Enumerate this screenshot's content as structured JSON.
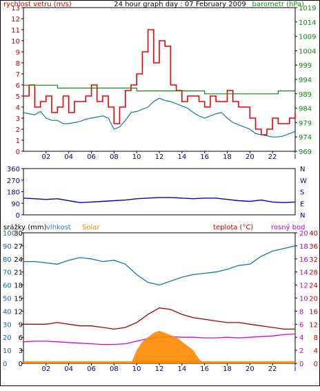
{
  "page": {
    "background": "#ffffff",
    "border": "#000000"
  },
  "colors": {
    "red": "#ee0000",
    "green": "#118811",
    "cyan": "#1177aa",
    "blue": "#0000cc",
    "orange": "#ff8800",
    "magenta": "#dd00dd",
    "darkred": "#aa0000",
    "text_red": "#cc0000",
    "text_green": "#118811",
    "text_blue": "#3377cc",
    "text_axis_blue": "#1166bb",
    "text_dark_blue": "#000088",
    "text_orange": "#ff8800",
    "text_magenta": "#cc00cc",
    "text_black": "#000000"
  },
  "chart_data": [
    {
      "type": "line",
      "title": "24 hour graph day : 07 February 2009",
      "left_axis_label": "rychlost vetru (m/s)",
      "right_axis_label": "barometr (hPa)",
      "x_ticks": [
        "02",
        "04",
        "06",
        "08",
        "10",
        "12",
        "14",
        "16",
        "18",
        "20",
        "22",
        "I"
      ],
      "left_ylim": [
        0,
        13
      ],
      "left_ticks": [
        "0",
        "1",
        "2",
        "3",
        "4",
        "5",
        "6",
        "7",
        "8",
        "9",
        "10",
        "11",
        "12",
        "13"
      ],
      "right_ylim": [
        969,
        1019
      ],
      "right_ticks": [
        "969",
        "974",
        "979",
        "984",
        "989",
        "994",
        "999",
        "1004",
        "1009",
        "1014",
        "1019"
      ],
      "grid": false,
      "series": [
        {
          "name": "",
          "color": "#ee0000",
          "style": "step",
          "x": [
            0,
            0.5,
            1,
            1.5,
            2,
            2.5,
            3,
            3.5,
            4,
            4.5,
            5,
            5.5,
            6,
            6.5,
            7,
            7.5,
            8,
            8.5,
            9,
            9.5,
            10,
            10.5,
            11,
            11.5,
            12,
            12.5,
            13,
            13.5,
            14,
            14.5,
            15,
            15.5,
            16,
            16.5,
            17,
            17.5,
            18,
            18.5,
            19,
            19.5,
            20,
            20.5,
            21,
            21.5,
            22,
            22.5,
            23,
            23.5,
            24
          ],
          "y": [
            5,
            6,
            4,
            4.5,
            5,
            3.5,
            4,
            5,
            3.5,
            4.5,
            4.5,
            5,
            6,
            4.5,
            5,
            4,
            2.5,
            4,
            5.5,
            6,
            7,
            9,
            11,
            8,
            10,
            9.5,
            6,
            5.5,
            4.5,
            5,
            5,
            4.5,
            4,
            5,
            4.5,
            4.5,
            5.5,
            4.5,
            4,
            4,
            3,
            2,
            1.5,
            2,
            3,
            2.5,
            2.5,
            3,
            3.5
          ]
        },
        {
          "name": "",
          "color": "#1177aa",
          "style": "line",
          "x": [
            0,
            0.5,
            1,
            1.5,
            2,
            2.5,
            3,
            3.5,
            4,
            4.5,
            5,
            5.5,
            6,
            6.5,
            7,
            7.5,
            8,
            8.5,
            9,
            9.5,
            10,
            10.5,
            11,
            11.5,
            12,
            12.5,
            13,
            13.5,
            14,
            14.5,
            15,
            15.5,
            16,
            16.5,
            17,
            17.5,
            18,
            18.5,
            19,
            19.5,
            20,
            20.5,
            21,
            21.5,
            22,
            22.5,
            23,
            23.5,
            24
          ],
          "y": [
            3.5,
            3.4,
            3.3,
            3.6,
            3,
            2.8,
            2.8,
            2.5,
            2.5,
            2.6,
            2.7,
            2.9,
            3,
            3.1,
            3.2,
            3.0,
            2.0,
            2.2,
            2.8,
            3.5,
            3.6,
            3.8,
            4.0,
            4.5,
            4.8,
            4.6,
            4.5,
            4.3,
            4.1,
            3.9,
            3.5,
            3.2,
            3.0,
            3.2,
            3.4,
            3.5,
            3.0,
            2.6,
            2.4,
            2.2,
            2.0,
            1.6,
            1.5,
            1.4,
            1.3,
            1.3,
            1.4,
            1.6,
            1.8
          ]
        },
        {
          "name": "",
          "color": "#118811",
          "style": "step",
          "axis": "right",
          "x": [
            0,
            1,
            2,
            3,
            4,
            5,
            6,
            7,
            8,
            9,
            10,
            11,
            12,
            13,
            14,
            15,
            16,
            17,
            18,
            19,
            20,
            21,
            22,
            22.5,
            23,
            24
          ],
          "y": [
            992,
            992,
            992,
            991,
            991,
            991,
            991,
            991,
            991,
            991,
            990,
            990,
            990,
            990,
            990,
            990,
            989,
            989,
            989,
            989,
            989,
            989,
            989,
            990,
            990,
            990
          ]
        }
      ]
    },
    {
      "type": "line",
      "left_ticks": [
        "0",
        "90",
        "180",
        "270",
        "360"
      ],
      "right_ticks": [
        "N",
        "W",
        "S",
        "E",
        "N"
      ],
      "ylim": [
        0,
        360
      ],
      "series": [
        {
          "name": "",
          "color": "#0000cc",
          "x": [
            0,
            1,
            2,
            3,
            4,
            5,
            6,
            7,
            8,
            9,
            10,
            11,
            12,
            13,
            14,
            15,
            16,
            17,
            18,
            19,
            20,
            21,
            22,
            23,
            24
          ],
          "y": [
            130,
            125,
            120,
            125,
            110,
            95,
            100,
            105,
            110,
            115,
            125,
            130,
            135,
            135,
            130,
            125,
            130,
            130,
            120,
            110,
            105,
            115,
            100,
            95,
            100
          ]
        }
      ]
    },
    {
      "type": "line",
      "legend": [
        "srážky (mm)",
        "vlhkost",
        "Solar",
        "teplota (°C)",
        "rosný bod"
      ],
      "left_ticks_srazky": [
        "0",
        "3",
        "6",
        "9",
        "12",
        "15",
        "18",
        "21",
        "24",
        "27",
        "30"
      ],
      "left_ticks_vlhkost": [
        "0",
        "10",
        "20",
        "30",
        "40",
        "50",
        "60",
        "70",
        "80",
        "90",
        "100"
      ],
      "right_ticks_temp": [
        "0",
        "4",
        "8",
        "12",
        "16",
        "20",
        "24",
        "28",
        "32",
        "36",
        "40"
      ],
      "right_ticks_dew": [
        "0",
        "2",
        "4",
        "6",
        "8",
        "10",
        "12",
        "14",
        "16",
        "18",
        "20"
      ],
      "series": [
        {
          "name": "vlhkost",
          "color": "#1177aa",
          "ylim": [
            0,
            100
          ],
          "x": [
            0,
            1,
            2,
            3,
            4,
            5,
            6,
            7,
            8,
            9,
            10,
            11,
            12,
            13,
            14,
            15,
            16,
            17,
            18,
            19,
            20,
            21,
            22,
            23,
            24
          ],
          "y": [
            78,
            78,
            77,
            76,
            79,
            81,
            80,
            78,
            79,
            76,
            68,
            62,
            60,
            63,
            66,
            68,
            69,
            70,
            72,
            75,
            76,
            82,
            86,
            88,
            90
          ]
        },
        {
          "name": "teplota (°C)",
          "color": "#aa0000",
          "ylim": [
            0,
            40
          ],
          "x": [
            0,
            1,
            2,
            3,
            4,
            5,
            6,
            7,
            8,
            9,
            10,
            11,
            12,
            13,
            14,
            15,
            16,
            17,
            18,
            19,
            20,
            21,
            22,
            23,
            24
          ],
          "y": [
            12,
            12,
            12,
            12.5,
            12,
            11.5,
            11.5,
            11,
            10.5,
            11,
            12.5,
            15,
            17,
            16.5,
            15,
            14,
            13.5,
            13,
            12.5,
            12.5,
            12,
            11.5,
            11,
            10.5,
            10.5
          ]
        },
        {
          "name": "rosný bod",
          "color": "#dd00dd",
          "ylim": [
            0,
            20
          ],
          "x": [
            0,
            1,
            2,
            3,
            4,
            5,
            6,
            7,
            8,
            9,
            10,
            11,
            12,
            13,
            14,
            15,
            16,
            17,
            18,
            19,
            20,
            21,
            22,
            23,
            24
          ],
          "y": [
            3.3,
            3.4,
            3.4,
            3.3,
            3.2,
            3.1,
            3.0,
            2.9,
            2.9,
            3.0,
            3.4,
            3.8,
            4.0,
            4.1,
            4.0,
            4.0,
            3.9,
            3.9,
            4.0,
            3.9,
            4.0,
            4.1,
            4.2,
            4.4,
            4.5
          ]
        },
        {
          "name": "Solar",
          "color": "#ff8800",
          "type": "area",
          "ylim": [
            0,
            30
          ],
          "x": [
            0,
            8.7,
            9.5,
            10,
            10.5,
            11,
            11.5,
            12,
            12.5,
            13,
            13.5,
            14,
            14.5,
            15,
            15.5,
            16,
            24
          ],
          "y": [
            0,
            0,
            0,
            3,
            5,
            6,
            7,
            7.5,
            7,
            6.5,
            6,
            5,
            4,
            3,
            1,
            0,
            0
          ]
        },
        {
          "name": "srážky (mm)",
          "color": "#ff8800",
          "type": "area",
          "ylim": [
            0,
            30
          ],
          "x": [
            0,
            24
          ],
          "y": [
            0.5,
            0.5
          ]
        }
      ]
    }
  ]
}
